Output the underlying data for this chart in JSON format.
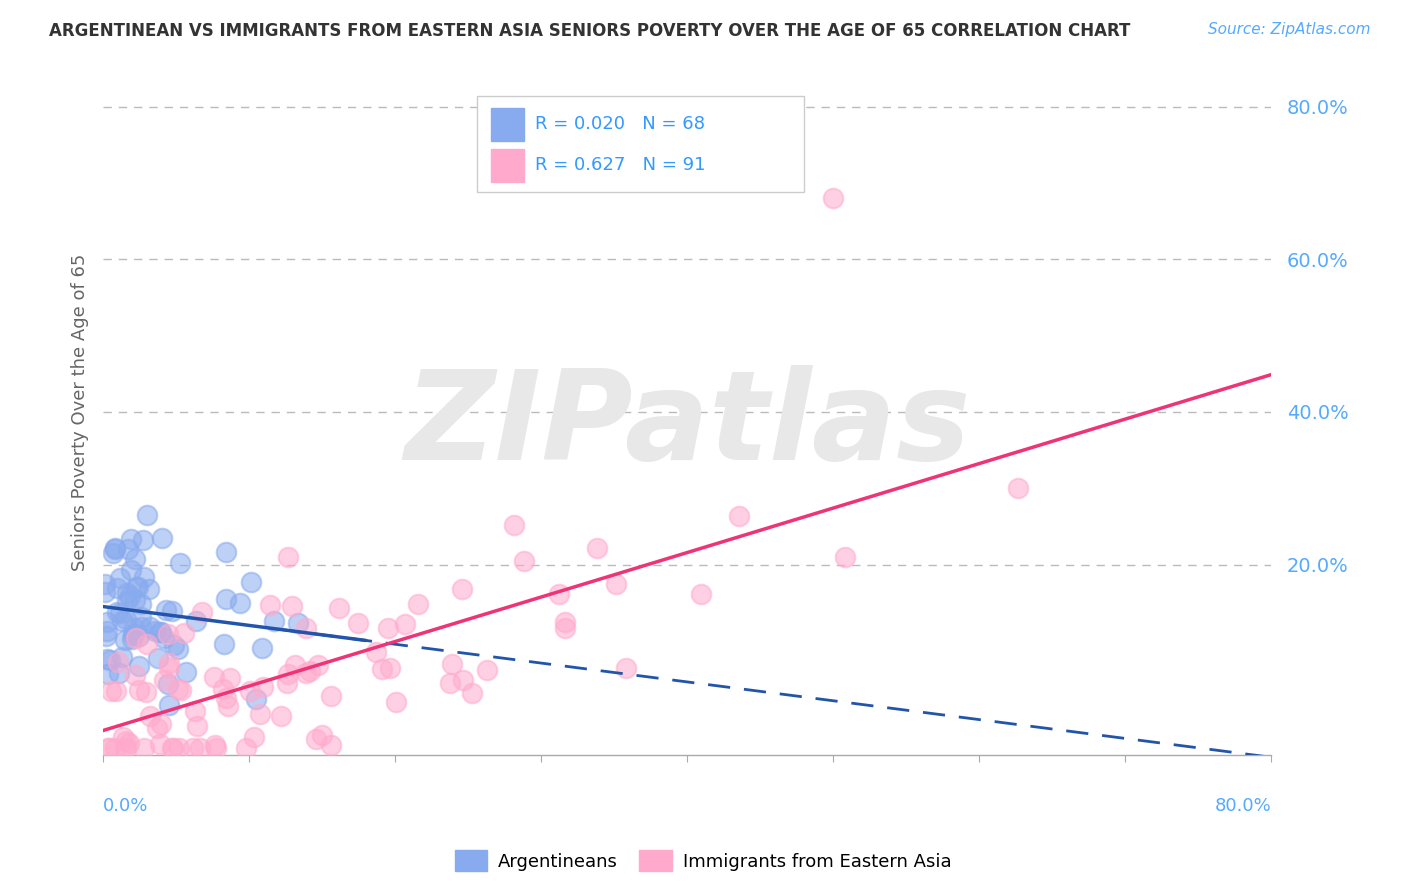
{
  "title": "ARGENTINEAN VS IMMIGRANTS FROM EASTERN ASIA SENIORS POVERTY OVER THE AGE OF 65 CORRELATION CHART",
  "source": "Source: ZipAtlas.com",
  "ylabel": "Seniors Poverty Over the Age of 65",
  "xlim": [
    0.0,
    0.8
  ],
  "ylim": [
    -0.05,
    0.85
  ],
  "ytick_vals": [
    0.2,
    0.4,
    0.6,
    0.8
  ],
  "ytick_labels": [
    "20.0%",
    "40.0%",
    "60.0%",
    "80.0%"
  ],
  "blue_R": 0.02,
  "blue_N": 68,
  "pink_R": 0.627,
  "pink_N": 91,
  "blue_color": "#88aaee",
  "pink_color": "#ffaacc",
  "blue_line_color": "#2255aa",
  "pink_line_color": "#ee3377",
  "grid_color": "#bbbbbb",
  "title_color": "#333333",
  "stat_color": "#3399ff",
  "watermark_color": "#dddddd",
  "watermark_text": "ZIPatlas",
  "legend_label_blue": "Argentineans",
  "legend_label_pink": "Immigrants from Eastern Asia",
  "background_color": "#ffffff",
  "source_color": "#55aaff",
  "axis_label_color": "#55aaff",
  "ylabel_color": "#666666"
}
